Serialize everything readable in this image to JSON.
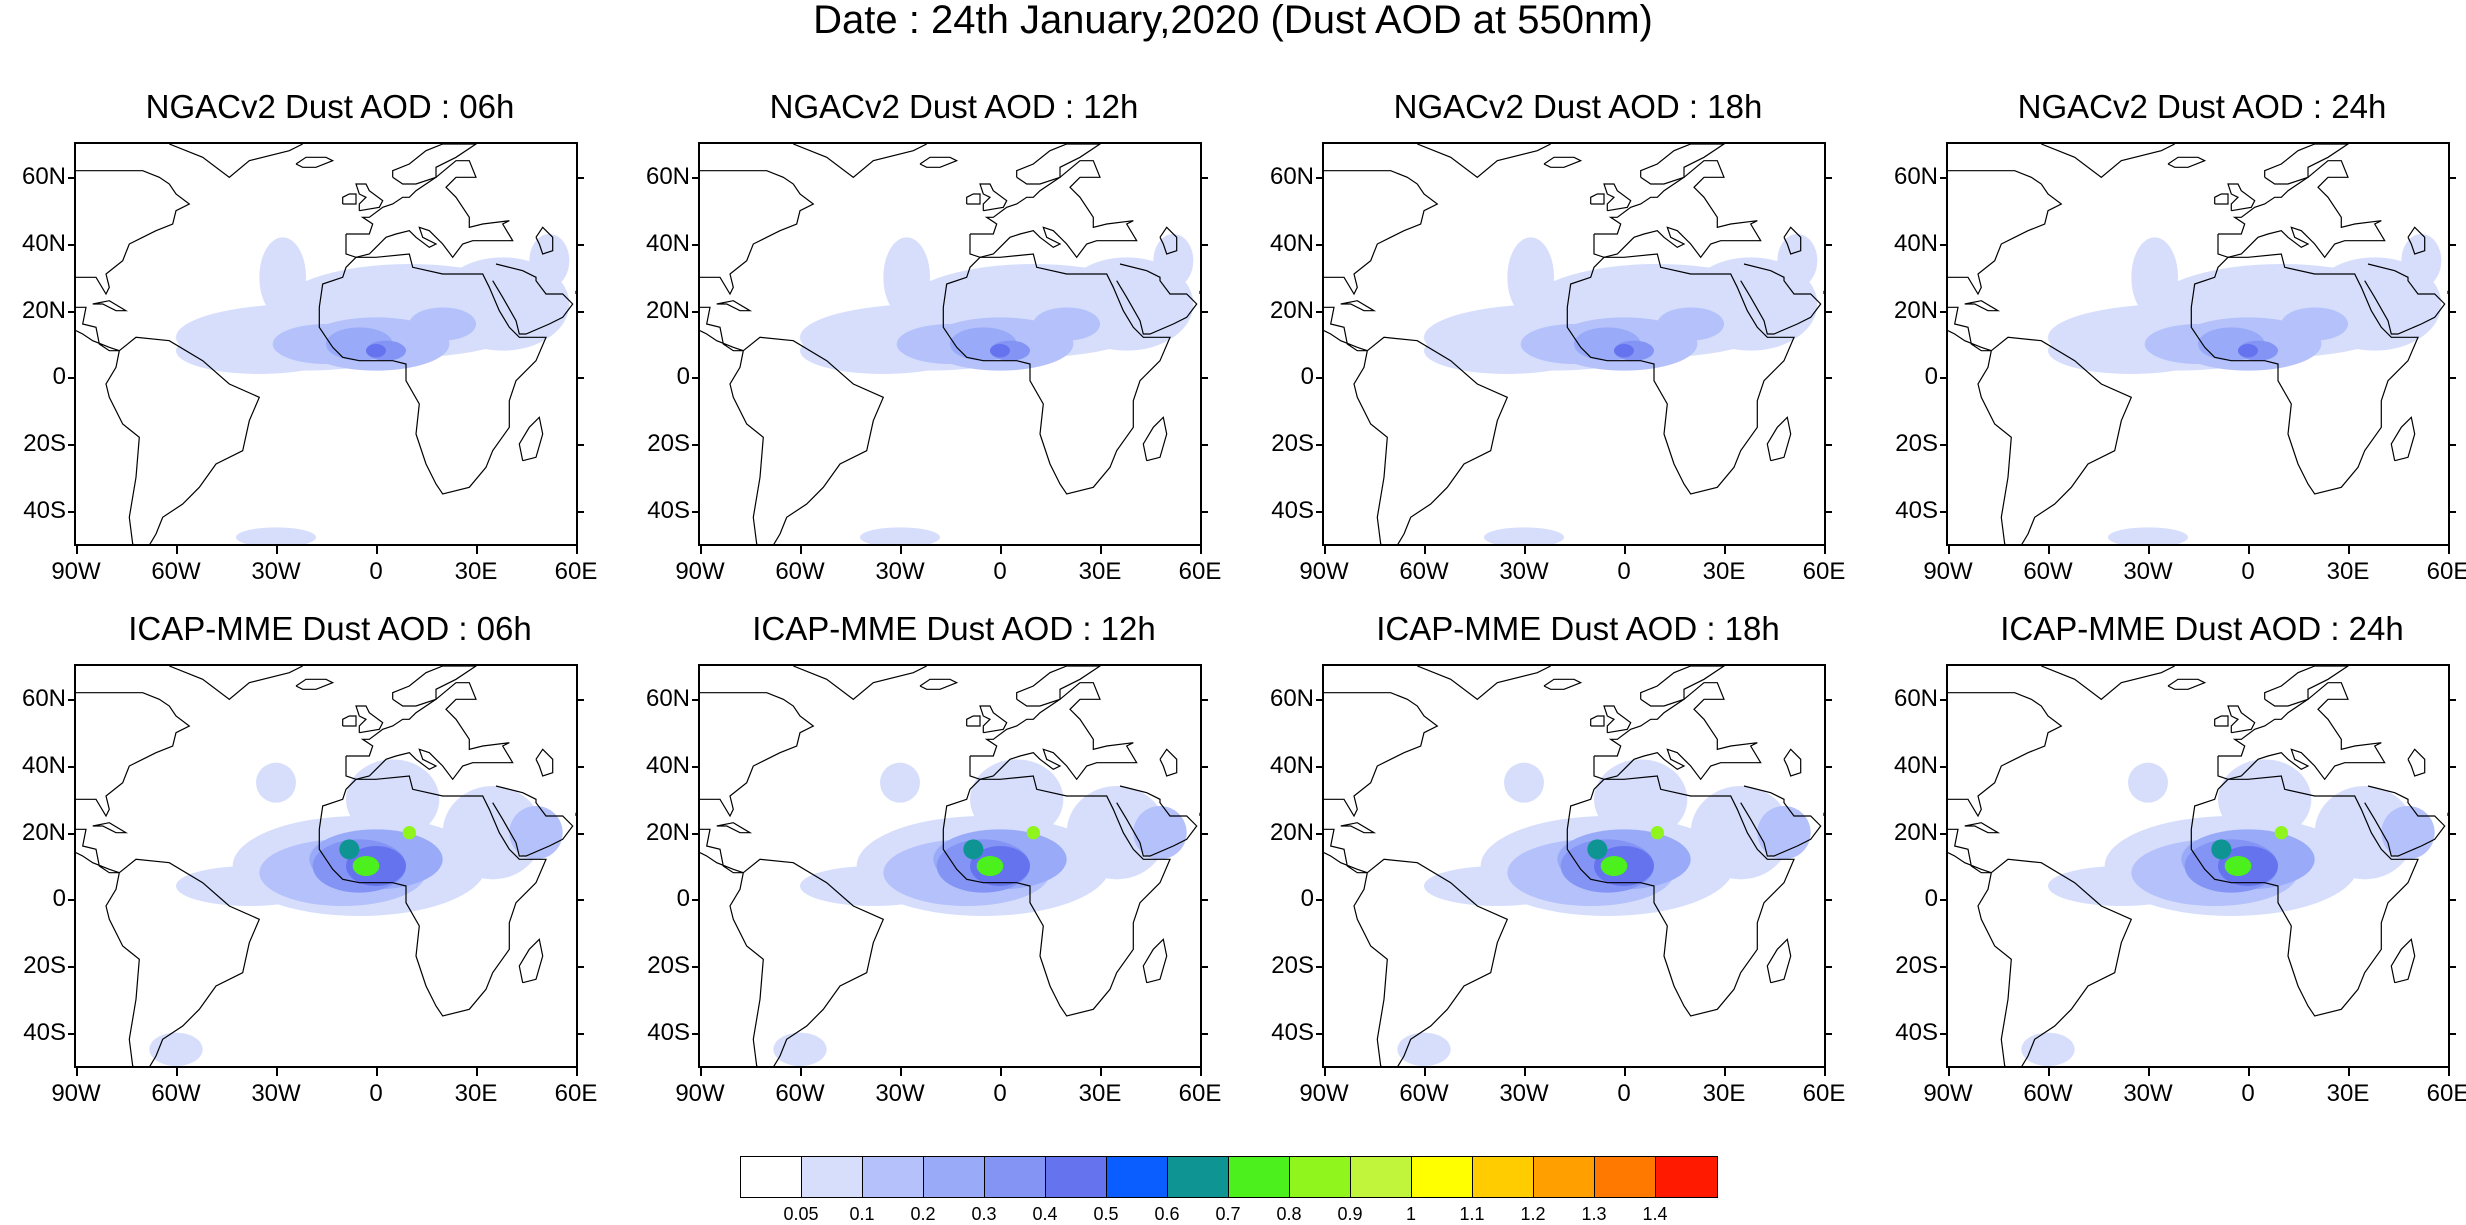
{
  "figure": {
    "title": "Date : 24th January,2020 (Dust AOD at 550nm)"
  },
  "panels": [
    {
      "title": "NGACv2 Dust AOD : 06h",
      "model": "NGACv2",
      "hour": "06h",
      "pattern": "ngac"
    },
    {
      "title": "NGACv2 Dust AOD : 12h",
      "model": "NGACv2",
      "hour": "12h",
      "pattern": "ngac"
    },
    {
      "title": "NGACv2 Dust AOD : 18h",
      "model": "NGACv2",
      "hour": "18h",
      "pattern": "ngac"
    },
    {
      "title": "NGACv2 Dust AOD : 24h",
      "model": "NGACv2",
      "hour": "24h",
      "pattern": "ngac"
    },
    {
      "title": "ICAP-MME Dust AOD : 06h",
      "model": "ICAP-MME",
      "hour": "06h",
      "pattern": "icap"
    },
    {
      "title": "ICAP-MME Dust AOD : 12h",
      "model": "ICAP-MME",
      "hour": "12h",
      "pattern": "icap"
    },
    {
      "title": "ICAP-MME Dust AOD : 18h",
      "model": "ICAP-MME",
      "hour": "18h",
      "pattern": "icap"
    },
    {
      "title": "ICAP-MME Dust AOD : 24h",
      "model": "ICAP-MME",
      "hour": "24h",
      "pattern": "icap"
    }
  ],
  "axes": {
    "lat_labels": [
      "60N",
      "40N",
      "20N",
      "0",
      "20S",
      "40S"
    ],
    "lat_values": [
      60,
      40,
      20,
      0,
      -20,
      -40
    ],
    "lon_labels": [
      "90W",
      "60W",
      "30W",
      "0",
      "30E",
      "60E"
    ],
    "lon_values": [
      -90,
      -60,
      -30,
      0,
      30,
      60
    ],
    "lat_range": [
      -50,
      70
    ],
    "lon_range": [
      -90,
      60
    ]
  },
  "colorbar": {
    "labels": [
      "0.05",
      "0.1",
      "0.2",
      "0.3",
      "0.4",
      "0.5",
      "0.6",
      "0.7",
      "0.8",
      "0.9",
      "1",
      "1.1",
      "1.2",
      "1.3",
      "1.4"
    ],
    "colors": [
      "#ffffff",
      "#d6defc",
      "#b4c1fa",
      "#98aaf8",
      "#8394f5",
      "#6673ef",
      "#0a5eff",
      "#0f9494",
      "#4cf01c",
      "#8ff51c",
      "#c0f53c",
      "#ffff00",
      "#ffcc00",
      "#ffa000",
      "#ff7800",
      "#ff1a00"
    ]
  }
}
